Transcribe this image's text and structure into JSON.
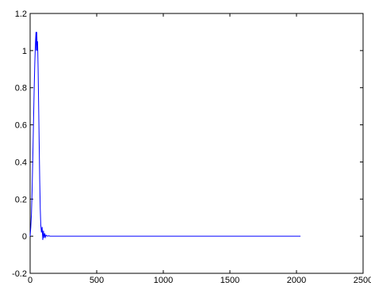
{
  "chart_data": {
    "type": "line",
    "title": "",
    "xlabel": "",
    "ylabel": "",
    "xlim": [
      0,
      2500
    ],
    "ylim": [
      -0.2,
      1.2
    ],
    "xticks": [
      0,
      500,
      1000,
      1500,
      2000,
      2500
    ],
    "yticks": [
      -0.2,
      0,
      0.2,
      0.4,
      0.6,
      0.8,
      1,
      1.2
    ],
    "grid": false,
    "legend": "none",
    "series_color": "#0000ff",
    "series": [
      {
        "x": [
          0,
          5,
          10,
          15,
          20,
          25,
          30,
          35,
          38,
          41,
          44,
          47,
          50,
          53,
          56,
          60,
          64,
          68,
          72,
          76,
          80,
          85,
          90,
          95,
          100,
          105,
          110,
          115,
          120,
          130,
          140,
          150,
          160,
          200,
          300,
          500,
          1000,
          1500,
          2000,
          2030
        ],
        "y": [
          0.0,
          0.05,
          0.12,
          0.25,
          0.42,
          0.6,
          0.78,
          0.93,
          1.0,
          1.06,
          1.1,
          1.0,
          1.1,
          1.0,
          1.05,
          0.9,
          0.7,
          0.5,
          0.3,
          0.15,
          0.06,
          0.02,
          0.05,
          -0.02,
          0.03,
          -0.01,
          0.015,
          -0.005,
          0.005,
          0.0,
          0.002,
          0.0,
          0.0,
          0.0,
          0.0,
          0.0,
          0.0,
          0.0,
          0.0,
          0.0
        ]
      }
    ]
  }
}
